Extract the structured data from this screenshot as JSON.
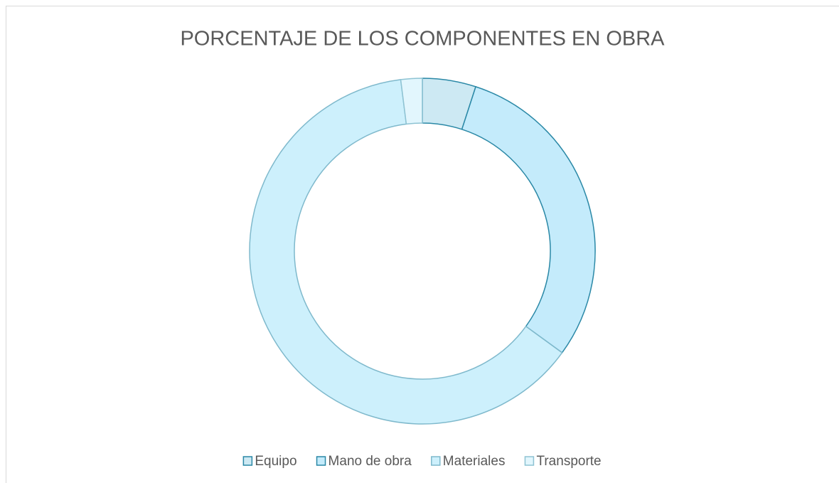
{
  "chart_data": {
    "type": "donut",
    "title": "PORCENTAJE DE LOS COMPONENTES EN OBRA",
    "categories": [
      "Equipo",
      "Mano de obra",
      "Materiales",
      "Transporte"
    ],
    "values": [
      5,
      30,
      63,
      2
    ],
    "colors": [
      "#cde9f3",
      "#c4ebfb",
      "#cdf0fc",
      "#e2f6fd"
    ],
    "edge_colors": [
      "#2a88a6",
      "#2a88a6",
      "#7fb9cc",
      "#8ec3d3"
    ],
    "legend": "bottom"
  }
}
